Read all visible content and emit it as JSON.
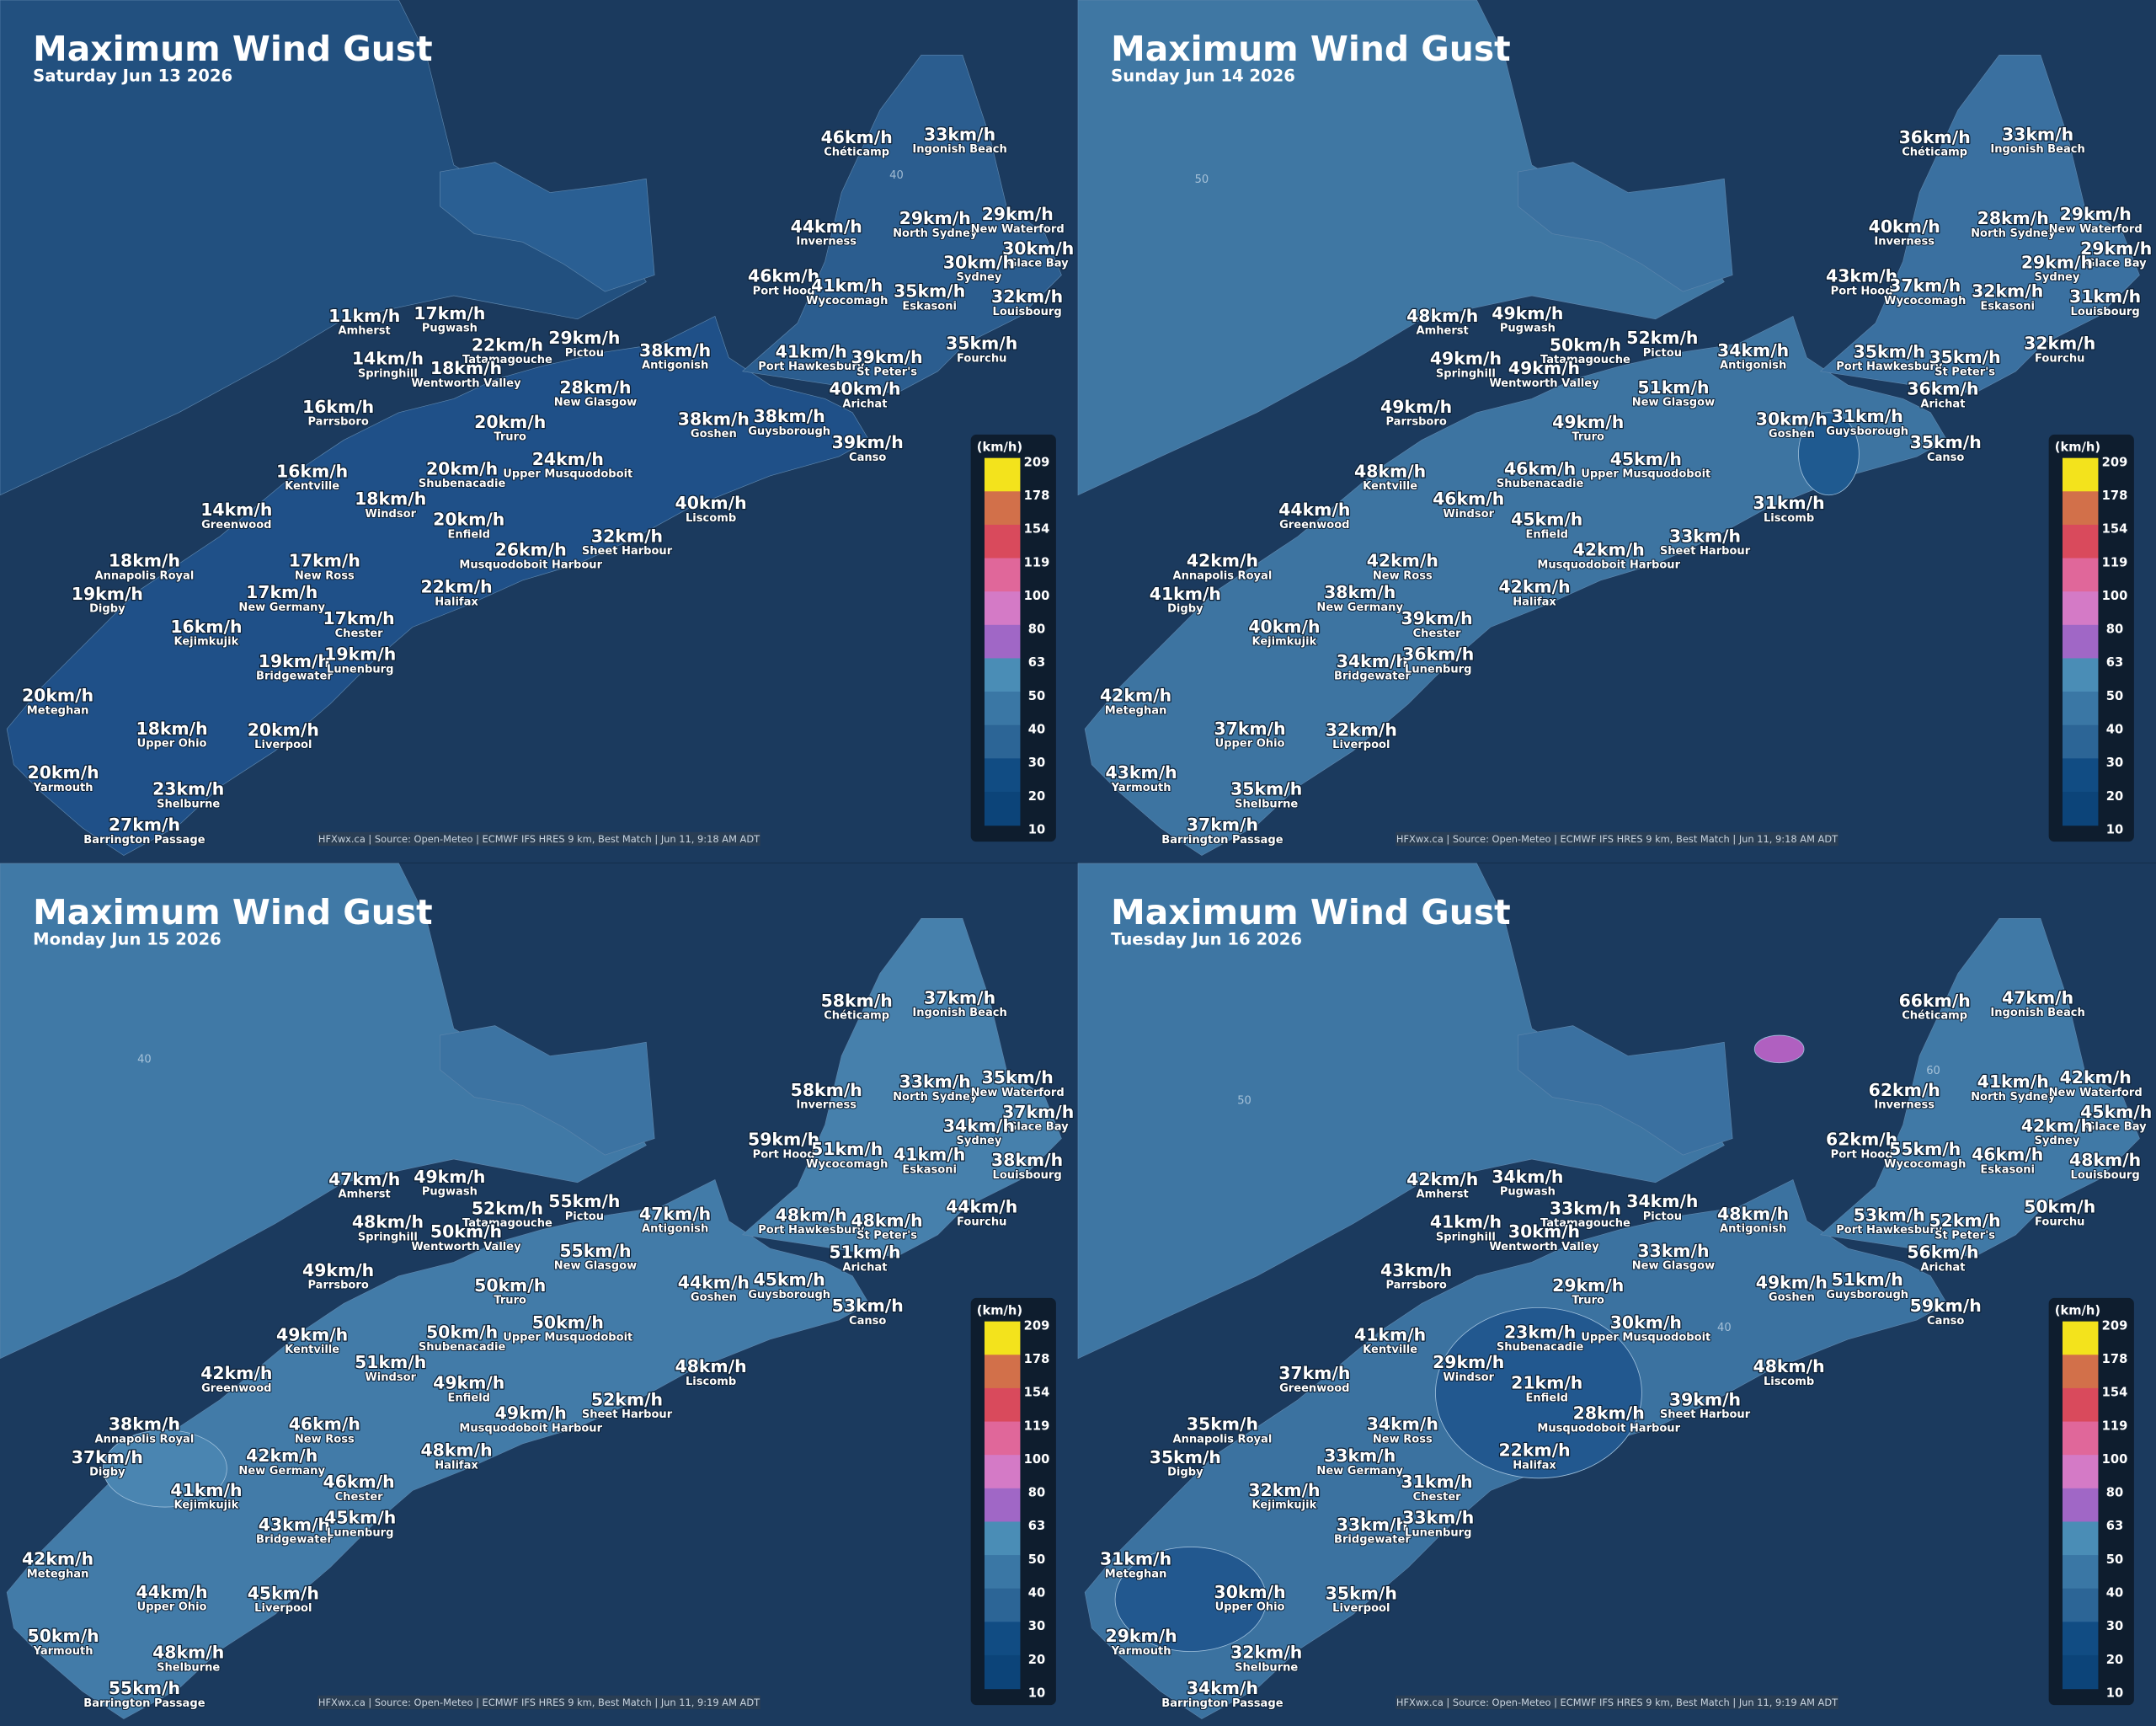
{
  "title": "Maximum Wind Gust",
  "locations": [
    "Chéticamp",
    "Ingonish Beach",
    "Inverness",
    "North Sydney",
    "New Waterford",
    "Glace Bay",
    "Sydney",
    "Port Hood",
    "Wycocomagh",
    "Eskasoni",
    "Louisbourg",
    "Amherst",
    "Pugwash",
    "Tatamagouche",
    "Pictou",
    "Antigonish",
    "Port Hawkesbury",
    "St Peter's",
    "Fourchu",
    "Springhill",
    "Wentworth Valley",
    "New Glasgow",
    "Arichat",
    "Parrsboro",
    "Truro",
    "Goshen",
    "Guysborough",
    "Canso",
    "Kentville",
    "Shubenacadie",
    "Upper Musquodoboit",
    "Windsor",
    "Liscomb",
    "Greenwood",
    "Enfield",
    "Sheet Harbour",
    "Musquodoboit Harbour",
    "Annapolis Royal",
    "New Ross",
    "Digby",
    "New Germany",
    "Halifax",
    "Kejimkujik",
    "Chester",
    "Bridgewater",
    "Lunenburg",
    "Meteghan",
    "Upper Ohio",
    "Liverpool",
    "Yarmouth",
    "Shelburne",
    "Barrington Passage"
  ],
  "legend": {
    "unit": "(km/h)",
    "ticks": [
      209,
      178,
      154,
      119,
      100,
      80,
      63,
      50,
      40,
      30,
      20,
      10
    ]
  },
  "panels": [
    {
      "date": "Saturday Jun 13 2026",
      "credit": "HFXwx.ca | Source: Open-Meteo | ECMWF IFS HRES 9 km, Best Match | Jun 11, 9:18 AM ADT",
      "contour_labels": [
        "40"
      ],
      "gusts": [
        "46km/h",
        "33km/h",
        "44km/h",
        "29km/h",
        "29km/h",
        "30km/h",
        "30km/h",
        "46km/h",
        "41km/h",
        "35km/h",
        "32km/h",
        "11km/h",
        "17km/h",
        "22km/h",
        "29km/h",
        "38km/h",
        "41km/h",
        "39km/h",
        "35km/h",
        "14km/h",
        "18km/h",
        "28km/h",
        "40km/h",
        "16km/h",
        "20km/h",
        "38km/h",
        "38km/h",
        "39km/h",
        "16km/h",
        "20km/h",
        "24km/h",
        "18km/h",
        "40km/h",
        "14km/h",
        "20km/h",
        "32km/h",
        "26km/h",
        "18km/h",
        "17km/h",
        "19km/h",
        "17km/h",
        "22km/h",
        "16km/h",
        "17km/h",
        "19km/h",
        "19km/h",
        "20km/h",
        "18km/h",
        "20km/h",
        "20km/h",
        "23km/h",
        "27km/h"
      ]
    },
    {
      "date": "Sunday Jun 14 2026",
      "credit": "HFXwx.ca | Source: Open-Meteo | ECMWF IFS HRES 9 km, Best Match | Jun 11, 9:18 AM ADT",
      "contour_labels": [
        "50"
      ],
      "gusts": [
        "36km/h",
        "33km/h",
        "40km/h",
        "28km/h",
        "29km/h",
        "29km/h",
        "29km/h",
        "43km/h",
        "37km/h",
        "32km/h",
        "31km/h",
        "48km/h",
        "49km/h",
        "50km/h",
        "52km/h",
        "34km/h",
        "35km/h",
        "35km/h",
        "32km/h",
        "49km/h",
        "49km/h",
        "51km/h",
        "36km/h",
        "49km/h",
        "49km/h",
        "30km/h",
        "31km/h",
        "35km/h",
        "48km/h",
        "46km/h",
        "45km/h",
        "46km/h",
        "31km/h",
        "44km/h",
        "45km/h",
        "33km/h",
        "42km/h",
        "42km/h",
        "42km/h",
        "41km/h",
        "38km/h",
        "42km/h",
        "40km/h",
        "39km/h",
        "34km/h",
        "36km/h",
        "42km/h",
        "37km/h",
        "32km/h",
        "43km/h",
        "35km/h",
        "37km/h"
      ]
    },
    {
      "date": "Monday Jun 15 2026",
      "credit": "HFXwx.ca | Source: Open-Meteo | ECMWF IFS HRES 9 km, Best Match | Jun 11, 9:19 AM ADT",
      "contour_labels": [
        "40"
      ],
      "gusts": [
        "58km/h",
        "37km/h",
        "58km/h",
        "33km/h",
        "35km/h",
        "37km/h",
        "34km/h",
        "59km/h",
        "51km/h",
        "41km/h",
        "38km/h",
        "47km/h",
        "49km/h",
        "52km/h",
        "55km/h",
        "47km/h",
        "48km/h",
        "48km/h",
        "44km/h",
        "48km/h",
        "50km/h",
        "55km/h",
        "51km/h",
        "49km/h",
        "50km/h",
        "44km/h",
        "45km/h",
        "53km/h",
        "49km/h",
        "50km/h",
        "50km/h",
        "51km/h",
        "48km/h",
        "42km/h",
        "49km/h",
        "52km/h",
        "49km/h",
        "38km/h",
        "46km/h",
        "37km/h",
        "42km/h",
        "48km/h",
        "41km/h",
        "46km/h",
        "43km/h",
        "45km/h",
        "42km/h",
        "44km/h",
        "45km/h",
        "50km/h",
        "48km/h",
        "55km/h"
      ]
    },
    {
      "date": "Tuesday Jun 16 2026",
      "credit": "HFXwx.ca | Source: Open-Meteo | ECMWF IFS HRES 9 km, Best Match | Jun 11, 9:19 AM ADT",
      "contour_labels": [
        "50",
        "60",
        "40"
      ],
      "gusts": [
        "66km/h",
        "47km/h",
        "62km/h",
        "41km/h",
        "42km/h",
        "45km/h",
        "42km/h",
        "62km/h",
        "55km/h",
        "46km/h",
        "48km/h",
        "42km/h",
        "34km/h",
        "33km/h",
        "34km/h",
        "48km/h",
        "53km/h",
        "52km/h",
        "50km/h",
        "41km/h",
        "30km/h",
        "33km/h",
        "56km/h",
        "43km/h",
        "29km/h",
        "49km/h",
        "51km/h",
        "59km/h",
        "41km/h",
        "23km/h",
        "30km/h",
        "29km/h",
        "48km/h",
        "37km/h",
        "21km/h",
        "39km/h",
        "28km/h",
        "35km/h",
        "34km/h",
        "35km/h",
        "33km/h",
        "22km/h",
        "32km/h",
        "31km/h",
        "33km/h",
        "33km/h",
        "31km/h",
        "30km/h",
        "35km/h",
        "29km/h",
        "32km/h",
        "34km/h"
      ]
    }
  ]
}
